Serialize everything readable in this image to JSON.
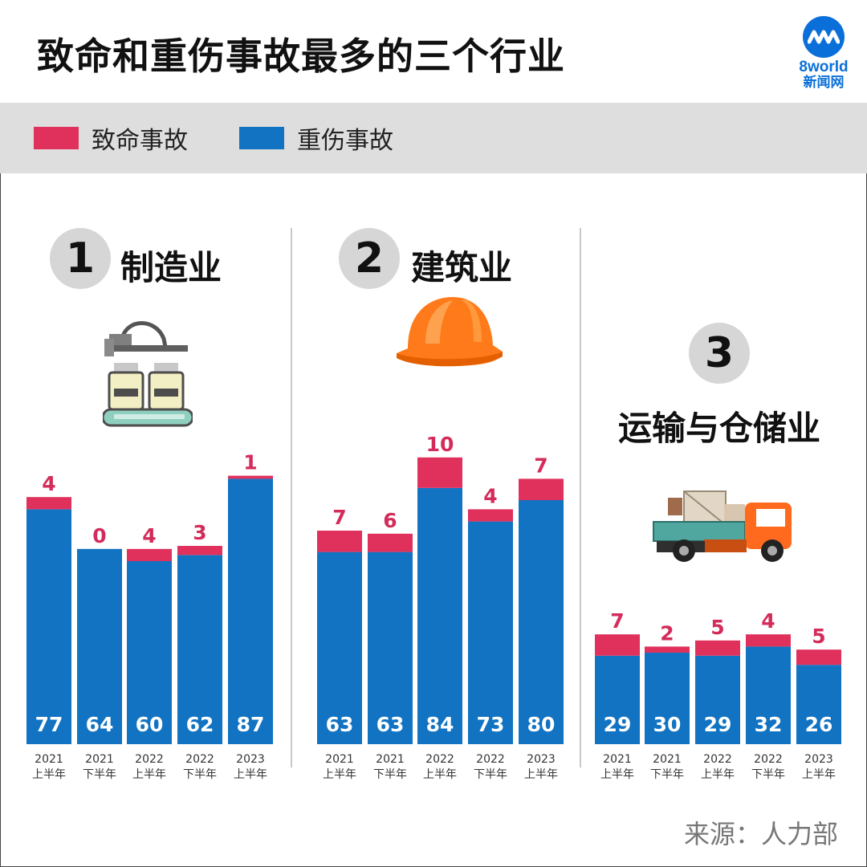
{
  "title": "致命和重伤事故最多的三个行业",
  "brand": {
    "name": "8world",
    "sub": "新闻网"
  },
  "legend": {
    "fatal": {
      "label": "致命事故",
      "color": "#e0315c"
    },
    "serious": {
      "label": "重伤事故",
      "color": "#1173c2"
    }
  },
  "source": "来源：人力部",
  "chart_data": [
    {
      "type": "bar",
      "stacked": true,
      "rank": "1",
      "industry": "制造业",
      "categories": [
        [
          "2021",
          "上半年"
        ],
        [
          "2021",
          "下半年"
        ],
        [
          "2022",
          "上半年"
        ],
        [
          "2022",
          "下半年"
        ],
        [
          "2023",
          "上半年"
        ]
      ],
      "series": [
        {
          "name": "重伤事故",
          "values": [
            77,
            64,
            60,
            62,
            87
          ]
        },
        {
          "name": "致命事故",
          "values": [
            4,
            0,
            4,
            3,
            1
          ]
        }
      ]
    },
    {
      "type": "bar",
      "stacked": true,
      "rank": "2",
      "industry": "建筑业",
      "categories": [
        [
          "2021",
          "上半年"
        ],
        [
          "2021",
          "下半年"
        ],
        [
          "2022",
          "上半年"
        ],
        [
          "2022",
          "下半年"
        ],
        [
          "2023",
          "上半年"
        ]
      ],
      "series": [
        {
          "name": "重伤事故",
          "values": [
            63,
            63,
            84,
            73,
            80
          ]
        },
        {
          "name": "致命事故",
          "values": [
            7,
            6,
            10,
            4,
            7
          ]
        }
      ]
    },
    {
      "type": "bar",
      "stacked": true,
      "rank": "3",
      "industry": "运输与仓储业",
      "categories": [
        [
          "2021",
          "上半年"
        ],
        [
          "2021",
          "下半年"
        ],
        [
          "2022",
          "上半年"
        ],
        [
          "2022",
          "下半年"
        ],
        [
          "2023",
          "上半年"
        ]
      ],
      "series": [
        {
          "name": "重伤事故",
          "values": [
            29,
            30,
            29,
            32,
            26
          ]
        },
        {
          "name": "致命事故",
          "values": [
            7,
            2,
            5,
            4,
            5
          ]
        }
      ]
    }
  ]
}
